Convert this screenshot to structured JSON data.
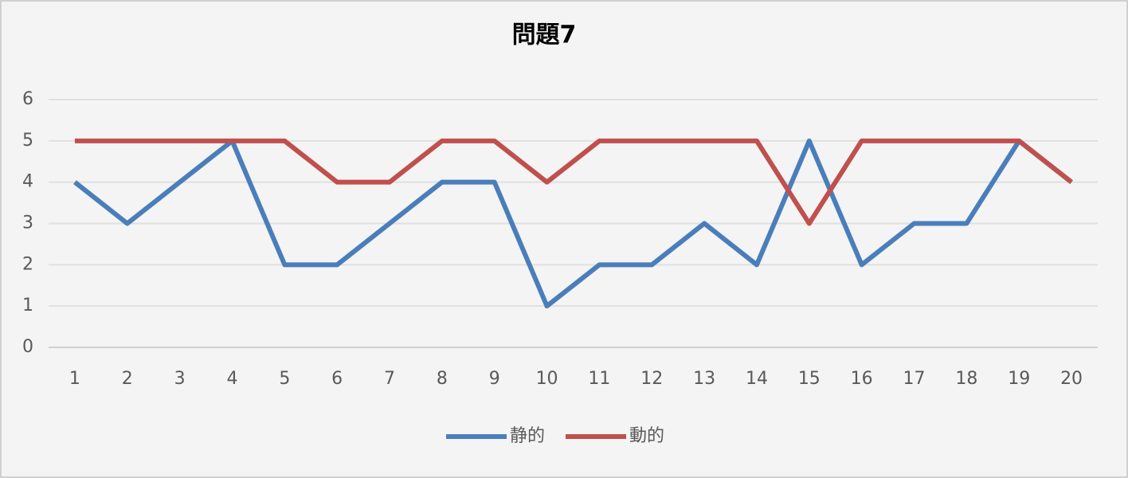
{
  "chart_data": {
    "type": "line",
    "title": "問題7",
    "categories": [
      "1",
      "2",
      "3",
      "4",
      "5",
      "6",
      "7",
      "8",
      "9",
      "10",
      "11",
      "12",
      "13",
      "14",
      "15",
      "16",
      "17",
      "18",
      "19",
      "20"
    ],
    "series": [
      {
        "name": "静的",
        "color": "#4a7ebb",
        "values": [
          4,
          3,
          4,
          5,
          2,
          2,
          3,
          4,
          4,
          1,
          2,
          2,
          3,
          2,
          5,
          2,
          3,
          3,
          5,
          4
        ]
      },
      {
        "name": "動的",
        "color": "#c0504d",
        "values": [
          5,
          5,
          5,
          5,
          5,
          4,
          4,
          5,
          5,
          4,
          5,
          5,
          5,
          5,
          3,
          5,
          5,
          5,
          5,
          4
        ]
      }
    ],
    "ylim": [
      0,
      6
    ],
    "yticks": [
      0,
      1,
      2,
      3,
      4,
      5,
      6
    ],
    "grid": true,
    "legend": "bottom"
  }
}
